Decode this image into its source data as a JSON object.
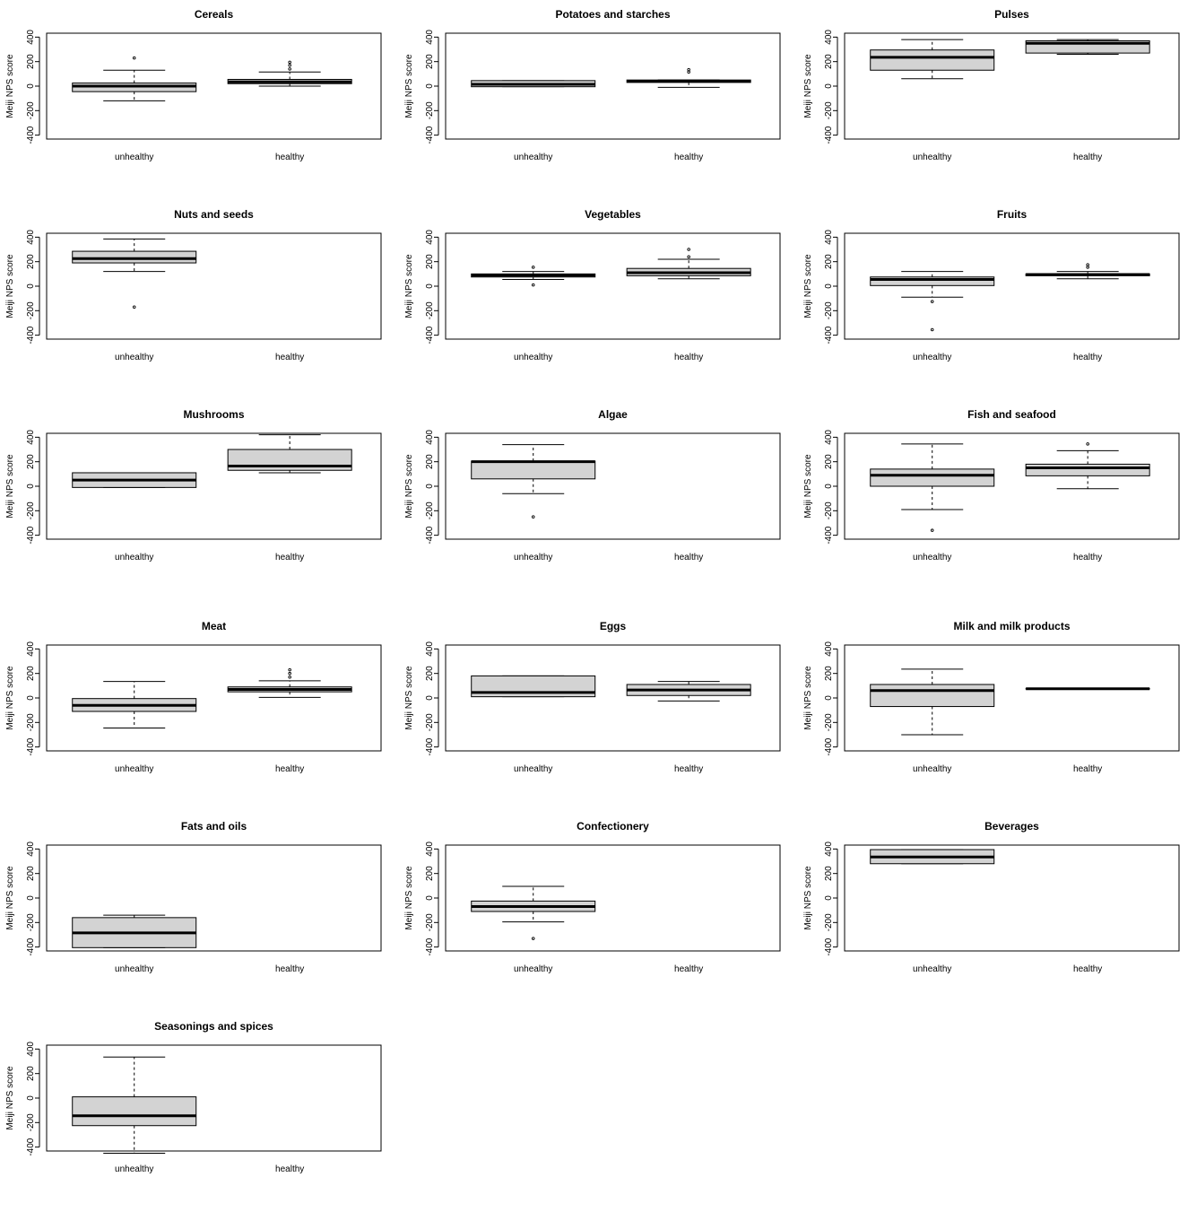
{
  "chart_data": [
    {
      "type": "box",
      "title": "Cereals",
      "ylabel": "Meiji NPS score",
      "ylim": [
        -400,
        400
      ],
      "yticks": [
        400,
        200,
        0,
        -200,
        -400
      ],
      "categories": [
        "unhealthy",
        "healthy"
      ],
      "boxes": [
        {
          "whisker_low": -120,
          "q1": -45,
          "median": 0,
          "q3": 25,
          "whisker_high": 130,
          "outliers": [
            230
          ]
        },
        {
          "whisker_low": 0,
          "q1": 20,
          "median": 35,
          "q3": 55,
          "whisker_high": 115,
          "outliers": [
            140,
            170,
            195
          ]
        }
      ]
    },
    {
      "type": "box",
      "title": "Potatoes and starches",
      "ylabel": "Meiji NPS score",
      "ylim": [
        -400,
        400
      ],
      "yticks": [
        400,
        200,
        0,
        -200,
        -400
      ],
      "categories": [
        "unhealthy",
        "healthy"
      ],
      "boxes": [
        {
          "whisker_low": -5,
          "q1": -5,
          "median": 15,
          "q3": 45,
          "whisker_high": 45,
          "outliers": []
        },
        {
          "whisker_low": -10,
          "q1": 30,
          "median": 40,
          "q3": 50,
          "whisker_high": 50,
          "outliers": [
            115,
            135
          ]
        }
      ]
    },
    {
      "type": "box",
      "title": "Pulses",
      "ylabel": "Meiji NPS score",
      "ylim": [
        -400,
        400
      ],
      "yticks": [
        400,
        200,
        0,
        -200,
        -400
      ],
      "categories": [
        "unhealthy",
        "healthy"
      ],
      "boxes": [
        {
          "whisker_low": 60,
          "q1": 130,
          "median": 235,
          "q3": 295,
          "whisker_high": 380,
          "outliers": []
        },
        {
          "whisker_low": 260,
          "q1": 270,
          "median": 350,
          "q3": 370,
          "whisker_high": 380,
          "outliers": []
        }
      ]
    },
    {
      "type": "box",
      "title": "Nuts and seeds",
      "ylabel": "Meiji NPS score",
      "ylim": [
        -400,
        400
      ],
      "yticks": [
        400,
        200,
        0,
        -200,
        -400
      ],
      "categories": [
        "unhealthy",
        "healthy"
      ],
      "boxes": [
        {
          "whisker_low": 120,
          "q1": 190,
          "median": 225,
          "q3": 285,
          "whisker_high": 385,
          "outliers": [
            -170
          ]
        },
        null
      ]
    },
    {
      "type": "box",
      "title": "Vegetables",
      "ylabel": "Meiji NPS score",
      "ylim": [
        -400,
        400
      ],
      "yticks": [
        400,
        200,
        0,
        -200,
        -400
      ],
      "categories": [
        "unhealthy",
        "healthy"
      ],
      "boxes": [
        {
          "whisker_low": 55,
          "q1": 75,
          "median": 90,
          "q3": 100,
          "whisker_high": 120,
          "outliers": [
            155,
            10
          ]
        },
        {
          "whisker_low": 60,
          "q1": 85,
          "median": 110,
          "q3": 145,
          "whisker_high": 220,
          "outliers": [
            240,
            300
          ]
        }
      ]
    },
    {
      "type": "box",
      "title": "Fruits",
      "ylabel": "Meiji NPS score",
      "ylim": [
        -400,
        400
      ],
      "yticks": [
        400,
        200,
        0,
        -200,
        -400
      ],
      "categories": [
        "unhealthy",
        "healthy"
      ],
      "boxes": [
        {
          "whisker_low": -90,
          "q1": 5,
          "median": 55,
          "q3": 75,
          "whisker_high": 120,
          "outliers": [
            -125,
            -355
          ]
        },
        {
          "whisker_low": 60,
          "q1": 85,
          "median": 95,
          "q3": 100,
          "whisker_high": 120,
          "outliers": [
            155,
            175
          ]
        }
      ]
    },
    {
      "type": "box",
      "title": "Mushrooms",
      "ylabel": "Meiji NPS score",
      "ylim": [
        -400,
        400
      ],
      "yticks": [
        400,
        200,
        0,
        -200,
        -400
      ],
      "categories": [
        "unhealthy",
        "healthy"
      ],
      "boxes": [
        {
          "whisker_low": -10,
          "q1": -10,
          "median": 50,
          "q3": 110,
          "whisker_high": 110,
          "outliers": []
        },
        {
          "whisker_low": 110,
          "q1": 130,
          "median": 165,
          "q3": 300,
          "whisker_high": 420,
          "outliers": []
        }
      ]
    },
    {
      "type": "box",
      "title": "Algae",
      "ylabel": "Meiji NPS score",
      "ylim": [
        -400,
        400
      ],
      "yticks": [
        400,
        200,
        0,
        -200,
        -400
      ],
      "categories": [
        "unhealthy",
        "healthy"
      ],
      "boxes": [
        {
          "whisker_low": -60,
          "q1": 60,
          "median": 200,
          "q3": 205,
          "whisker_high": 340,
          "outliers": [
            -250
          ]
        },
        null
      ]
    },
    {
      "type": "box",
      "title": "Fish and seafood",
      "ylabel": "Meiji NPS score",
      "ylim": [
        -400,
        400
      ],
      "yticks": [
        400,
        200,
        0,
        -200,
        -400
      ],
      "categories": [
        "unhealthy",
        "healthy"
      ],
      "boxes": [
        {
          "whisker_low": -190,
          "q1": 0,
          "median": 90,
          "q3": 140,
          "whisker_high": 345,
          "outliers": [
            -360
          ]
        },
        {
          "whisker_low": -20,
          "q1": 85,
          "median": 150,
          "q3": 180,
          "whisker_high": 290,
          "outliers": [
            345
          ]
        }
      ]
    },
    {
      "type": "box",
      "title": "Meat",
      "ylabel": "Meiji NPS score",
      "ylim": [
        -400,
        400
      ],
      "yticks": [
        400,
        200,
        0,
        -200,
        -400
      ],
      "categories": [
        "unhealthy",
        "healthy"
      ],
      "boxes": [
        {
          "whisker_low": -245,
          "q1": -110,
          "median": -60,
          "q3": -5,
          "whisker_high": 135,
          "outliers": []
        },
        {
          "whisker_low": 5,
          "q1": 50,
          "median": 70,
          "q3": 90,
          "whisker_high": 140,
          "outliers": [
            170,
            200,
            230
          ]
        }
      ]
    },
    {
      "type": "box",
      "title": "Eggs",
      "ylabel": "Meiji NPS score",
      "ylim": [
        -400,
        400
      ],
      "yticks": [
        400,
        200,
        0,
        -200,
        -400
      ],
      "categories": [
        "unhealthy",
        "healthy"
      ],
      "boxes": [
        {
          "whisker_low": 10,
          "q1": 10,
          "median": 45,
          "q3": 180,
          "whisker_high": 180,
          "outliers": []
        },
        {
          "whisker_low": -25,
          "q1": 20,
          "median": 65,
          "q3": 110,
          "whisker_high": 135,
          "outliers": []
        }
      ]
    },
    {
      "type": "box",
      "title": "Milk and milk products",
      "ylabel": "Meiji NPS score",
      "ylim": [
        -400,
        400
      ],
      "yticks": [
        400,
        200,
        0,
        -200,
        -400
      ],
      "categories": [
        "unhealthy",
        "healthy"
      ],
      "boxes": [
        {
          "whisker_low": -300,
          "q1": -70,
          "median": 60,
          "q3": 110,
          "whisker_high": 235,
          "outliers": []
        },
        {
          "whisker_low": 75,
          "q1": 75,
          "median": 75,
          "q3": 75,
          "whisker_high": 75,
          "outliers": []
        }
      ]
    },
    {
      "type": "box",
      "title": "Fats and oils",
      "ylabel": "Meiji NPS score",
      "ylim": [
        -400,
        400
      ],
      "yticks": [
        400,
        200,
        0,
        -200,
        -400
      ],
      "categories": [
        "unhealthy",
        "healthy"
      ],
      "boxes": [
        {
          "whisker_low": -405,
          "q1": -405,
          "median": -285,
          "q3": -160,
          "whisker_high": -140,
          "outliers": []
        },
        null
      ]
    },
    {
      "type": "box",
      "title": "Confectionery",
      "ylabel": "Meiji NPS score",
      "ylim": [
        -400,
        400
      ],
      "yticks": [
        400,
        200,
        0,
        -200,
        -400
      ],
      "categories": [
        "unhealthy",
        "healthy"
      ],
      "boxes": [
        {
          "whisker_low": -195,
          "q1": -110,
          "median": -70,
          "q3": -25,
          "whisker_high": 95,
          "outliers": [
            -330
          ]
        },
        null
      ]
    },
    {
      "type": "box",
      "title": "Beverages",
      "ylabel": "Meiji NPS score",
      "ylim": [
        -400,
        400
      ],
      "yticks": [
        400,
        200,
        0,
        -200,
        -400
      ],
      "categories": [
        "unhealthy",
        "healthy"
      ],
      "boxes": [
        {
          "whisker_low": 280,
          "q1": 280,
          "median": 335,
          "q3": 395,
          "whisker_high": 395,
          "outliers": []
        },
        null
      ]
    },
    {
      "type": "box",
      "title": "Seasonings and spices",
      "ylabel": "Meiji NPS score",
      "ylim": [
        -400,
        400
      ],
      "yticks": [
        400,
        200,
        0,
        -200,
        -400
      ],
      "categories": [
        "unhealthy",
        "healthy"
      ],
      "boxes": [
        {
          "whisker_low": -450,
          "q1": -225,
          "median": -145,
          "q3": 10,
          "whisker_high": 335,
          "outliers": []
        },
        null
      ]
    }
  ],
  "colors": {
    "box_fill": "#d3d3d3",
    "stroke": "#000000",
    "background": "#ffffff"
  }
}
